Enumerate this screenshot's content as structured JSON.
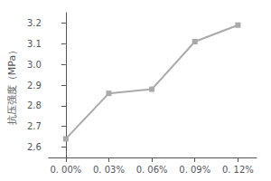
{
  "chart_data": {
    "type": "line",
    "ylabel": "抗压强度（MPa）",
    "x": [
      0.0,
      0.03,
      0.06,
      0.09,
      0.12
    ],
    "values": [
      2.64,
      2.86,
      2.88,
      3.11,
      3.19
    ],
    "xlim": [
      -0.012,
      0.133
    ],
    "xticks": [
      {
        "value": 0.0,
        "label": "0. 00%"
      },
      {
        "value": 0.03,
        "label": "0. 03%"
      },
      {
        "value": 0.06,
        "label": "0. 06%"
      },
      {
        "value": 0.09,
        "label": "0. 09%"
      },
      {
        "value": 0.12,
        "label": "0. 12%"
      }
    ],
    "ylim": [
      2.55,
      3.25
    ],
    "yticks": [
      2.6,
      2.7,
      2.8,
      2.9,
      {
        "value": 3.0,
        "label": "3.0"
      },
      3.1,
      3.2
    ],
    "color": "#aaaaaa",
    "marker": "square",
    "grid": false
  }
}
